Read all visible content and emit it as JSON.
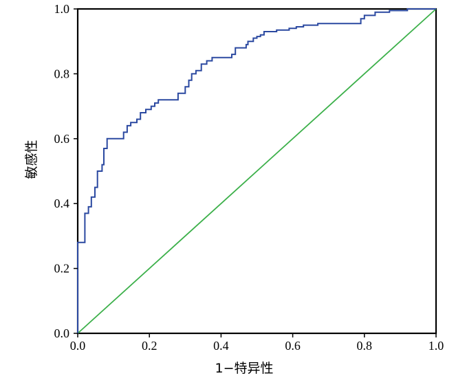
{
  "chart_data": {
    "type": "line",
    "xlabel": "1−特异性",
    "ylabel": "敏感性",
    "xlim": [
      0,
      1
    ],
    "ylim": [
      0,
      1
    ],
    "x_ticks": [
      "0.0",
      "0.2",
      "0.4",
      "0.6",
      "0.8",
      "1.0"
    ],
    "y_ticks": [
      "0.0",
      "0.2",
      "0.4",
      "0.6",
      "0.8",
      "1.0"
    ],
    "grid": false,
    "series": [
      {
        "color": "#2a48a0",
        "x": [
          0.0,
          0.0,
          0.006,
          0.006,
          0.02,
          0.02,
          0.03,
          0.03,
          0.038,
          0.038,
          0.048,
          0.048,
          0.055,
          0.055,
          0.068,
          0.068,
          0.073,
          0.073,
          0.082,
          0.082,
          0.098,
          0.098,
          0.128,
          0.128,
          0.138,
          0.138,
          0.148,
          0.148,
          0.165,
          0.165,
          0.175,
          0.175,
          0.19,
          0.19,
          0.205,
          0.205,
          0.215,
          0.215,
          0.225,
          0.225,
          0.235,
          0.235,
          0.28,
          0.28,
          0.3,
          0.3,
          0.31,
          0.31,
          0.318,
          0.318,
          0.33,
          0.33,
          0.345,
          0.345,
          0.36,
          0.36,
          0.375,
          0.375,
          0.4,
          0.4,
          0.43,
          0.43,
          0.44,
          0.44,
          0.46,
          0.46,
          0.47,
          0.47,
          0.475,
          0.475,
          0.49,
          0.49,
          0.5,
          0.5,
          0.51,
          0.51,
          0.52,
          0.52,
          0.555,
          0.555,
          0.59,
          0.59,
          0.61,
          0.61,
          0.63,
          0.63,
          0.64,
          0.64,
          0.67,
          0.67,
          0.74,
          0.74,
          0.79,
          0.79,
          0.8,
          0.8,
          0.83,
          0.83,
          0.87,
          0.87,
          0.92,
          0.92,
          1.0
        ],
        "y": [
          0.0,
          0.28,
          0.28,
          0.28,
          0.28,
          0.37,
          0.37,
          0.39,
          0.39,
          0.42,
          0.42,
          0.45,
          0.45,
          0.5,
          0.5,
          0.52,
          0.52,
          0.57,
          0.57,
          0.6,
          0.6,
          0.6,
          0.6,
          0.62,
          0.62,
          0.64,
          0.64,
          0.65,
          0.65,
          0.66,
          0.66,
          0.68,
          0.68,
          0.69,
          0.69,
          0.7,
          0.7,
          0.71,
          0.71,
          0.72,
          0.72,
          0.72,
          0.72,
          0.74,
          0.74,
          0.76,
          0.76,
          0.78,
          0.78,
          0.8,
          0.8,
          0.81,
          0.81,
          0.83,
          0.83,
          0.84,
          0.84,
          0.85,
          0.85,
          0.85,
          0.85,
          0.86,
          0.86,
          0.88,
          0.88,
          0.88,
          0.88,
          0.89,
          0.89,
          0.9,
          0.9,
          0.91,
          0.91,
          0.915,
          0.915,
          0.92,
          0.92,
          0.93,
          0.93,
          0.935,
          0.935,
          0.94,
          0.94,
          0.945,
          0.945,
          0.95,
          0.95,
          0.95,
          0.95,
          0.955,
          0.955,
          0.955,
          0.955,
          0.97,
          0.97,
          0.98,
          0.98,
          0.99,
          0.99,
          0.995,
          0.995,
          1.0,
          1.0
        ]
      },
      {
        "color": "#3cb04a",
        "x": [
          0.0,
          1.0
        ],
        "y": [
          0.0,
          1.0
        ]
      }
    ]
  }
}
